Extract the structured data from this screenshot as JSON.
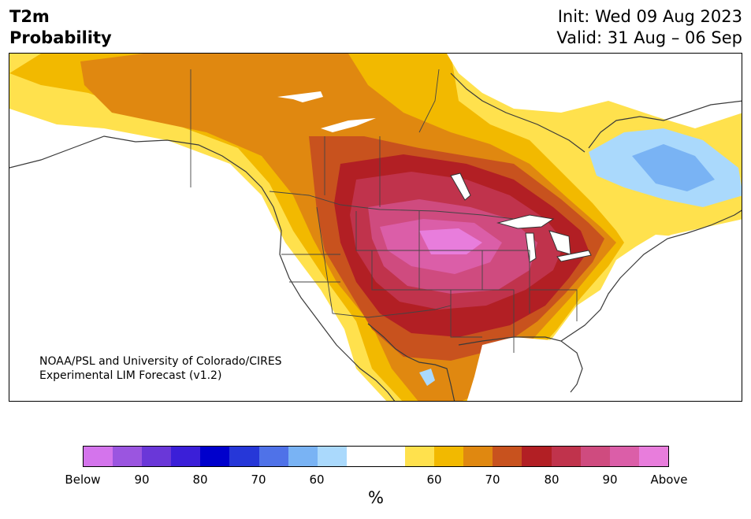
{
  "header": {
    "variable": "T2m",
    "subtitle": "Probability",
    "init": "Init: Wed 09 Aug 2023",
    "valid": "Valid: 31 Aug – 06 Sep"
  },
  "map": {
    "credit_line1": "NOAA/PSL and University of Colorado/CIRES",
    "credit_line2": "Experimental LIM Forecast (v1.2)"
  },
  "colorbar": {
    "colors": [
      "#d474ec",
      "#9b55e0",
      "#6a37d8",
      "#3b1fd8",
      "#0000cc",
      "#2637d8",
      "#4f72e8",
      "#79b3f4",
      "#aad9fc",
      "#ffffff",
      "#ffffff",
      "#ffe14d",
      "#f2b900",
      "#e08810",
      "#c8521e",
      "#b21f24",
      "#c0334c",
      "#cf4b7f",
      "#db5ea8",
      "#e87ddc"
    ],
    "labels": [
      "Below",
      "90",
      "80",
      "70",
      "60",
      "60",
      "70",
      "80",
      "90",
      "Above"
    ],
    "unit": "%"
  }
}
